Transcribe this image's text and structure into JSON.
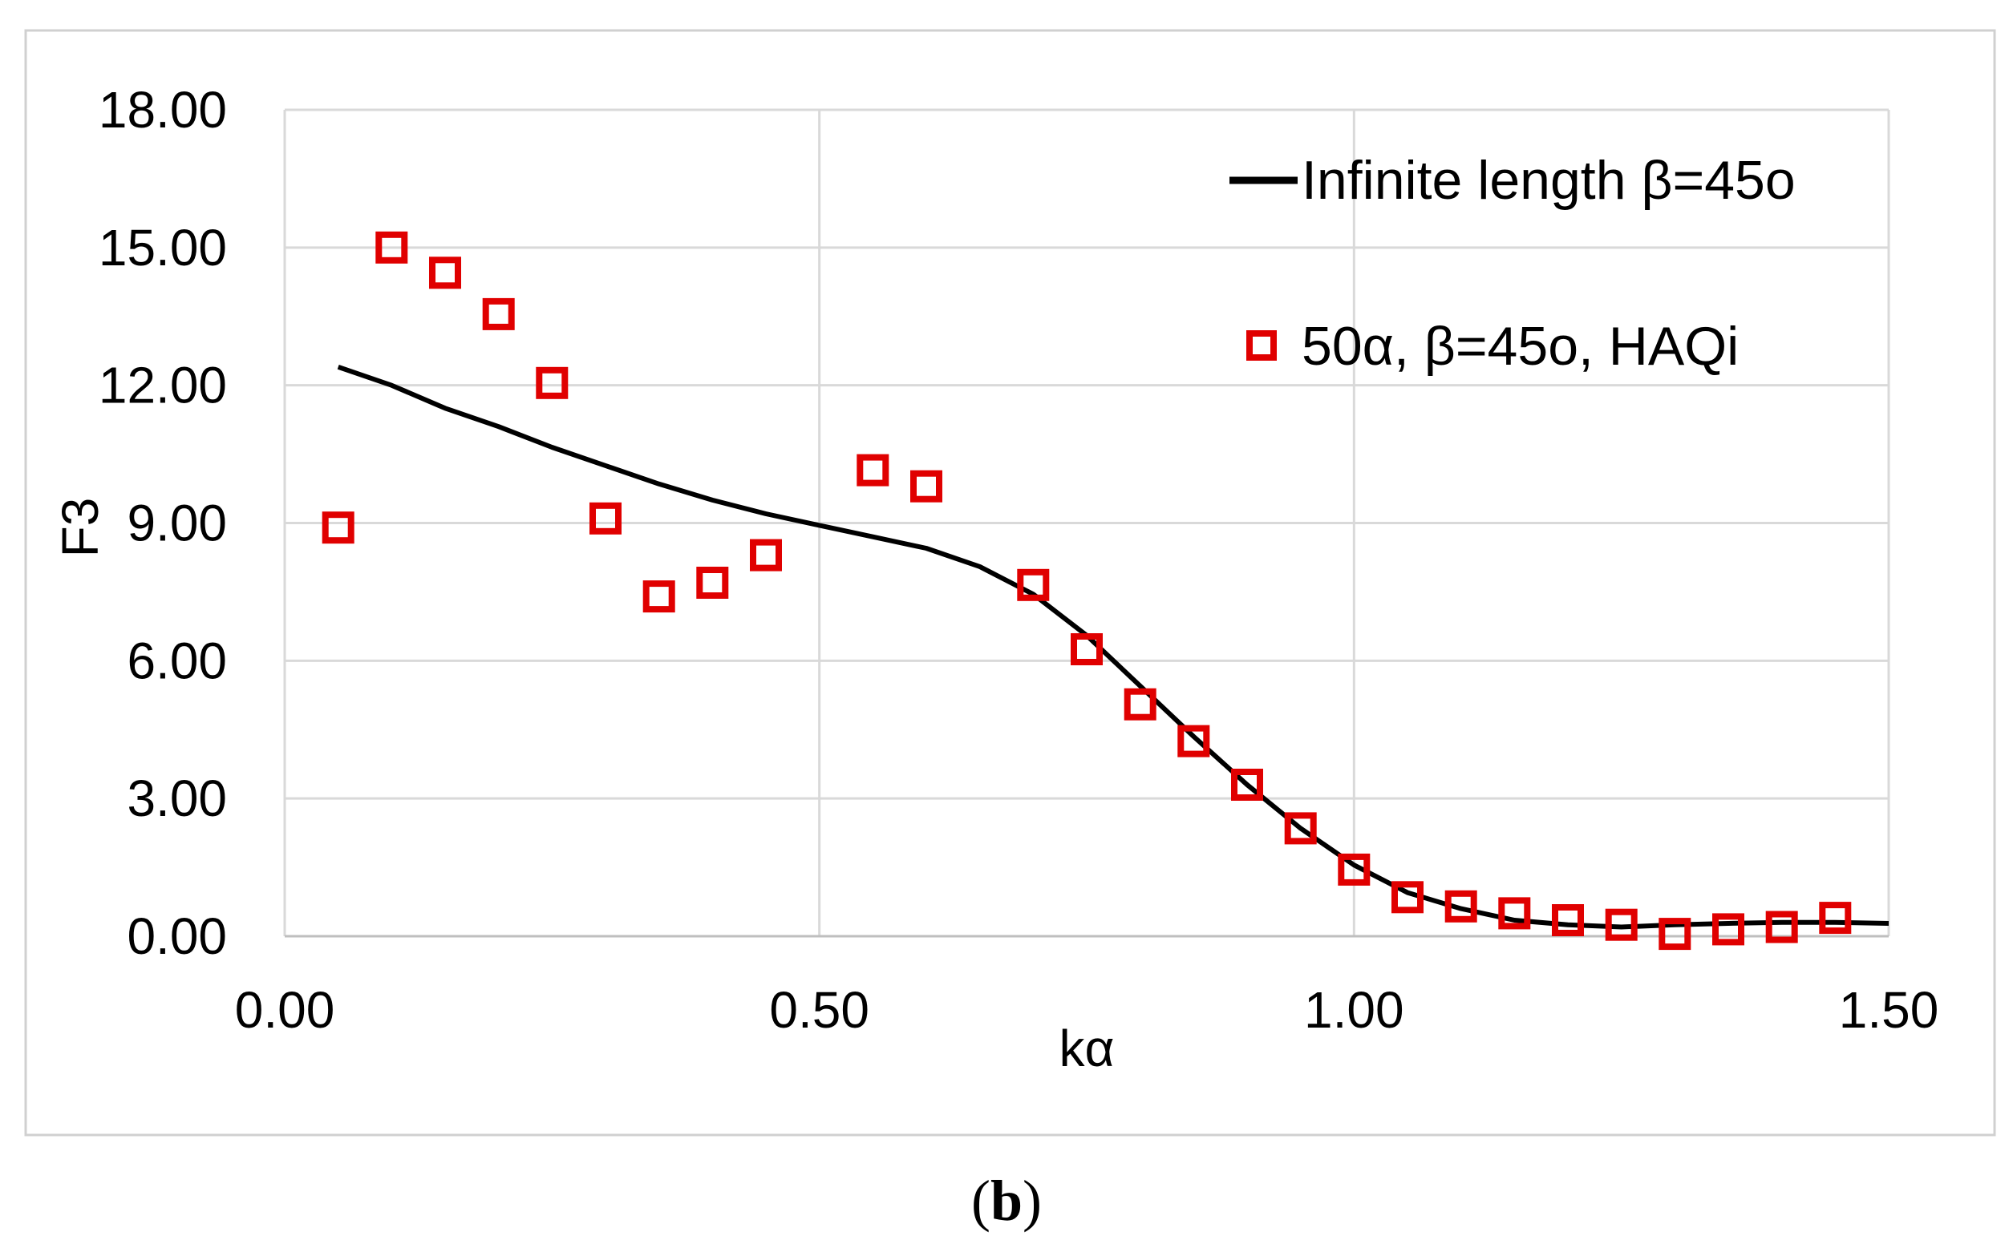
{
  "chart_data": {
    "type": "line",
    "xlabel": "kα",
    "ylabel": "F3",
    "xlim": [
      0,
      1.5
    ],
    "ylim": [
      0,
      18
    ],
    "x_ticks": [
      "0.00",
      "0.50",
      "1.00",
      "1.50"
    ],
    "y_ticks": [
      "0.00",
      "3.00",
      "6.00",
      "9.00",
      "12.00",
      "15.00",
      "18.00"
    ],
    "x_tick_values": [
      0,
      0.5,
      1.0,
      1.5
    ],
    "y_tick_values": [
      0,
      3,
      6,
      9,
      12,
      15,
      18
    ],
    "x_grid_values": [
      0.5,
      1.0,
      1.5
    ],
    "grid": true,
    "legend_position": "top-right",
    "series": [
      {
        "name": "Infinite length β=45o",
        "style": "line",
        "color": "#000000",
        "x": [
          0.05,
          0.1,
          0.15,
          0.2,
          0.25,
          0.3,
          0.35,
          0.4,
          0.45,
          0.5,
          0.55,
          0.6,
          0.65,
          0.7,
          0.75,
          0.8,
          0.85,
          0.9,
          0.95,
          1.0,
          1.05,
          1.1,
          1.15,
          1.2,
          1.25,
          1.3,
          1.35,
          1.4,
          1.45,
          1.5
        ],
        "y": [
          12.4,
          12.0,
          11.5,
          11.1,
          10.65,
          10.25,
          9.85,
          9.5,
          9.2,
          8.95,
          8.7,
          8.45,
          8.05,
          7.45,
          6.55,
          5.45,
          4.35,
          3.3,
          2.35,
          1.55,
          0.95,
          0.6,
          0.35,
          0.25,
          0.2,
          0.25,
          0.28,
          0.3,
          0.3,
          0.28
        ]
      },
      {
        "name": "50α, β=45o, HAQi",
        "style": "markers",
        "marker": "square",
        "color": "#e00000",
        "x": [
          0.05,
          0.1,
          0.15,
          0.2,
          0.25,
          0.3,
          0.35,
          0.4,
          0.45,
          0.55,
          0.6,
          0.7,
          0.75,
          0.8,
          0.85,
          0.9,
          0.95,
          1.0,
          1.05,
          1.1,
          1.15,
          1.2,
          1.25,
          1.3,
          1.35,
          1.4,
          1.45
        ],
        "y": [
          8.9,
          15.0,
          14.45,
          13.55,
          12.05,
          9.1,
          7.4,
          7.7,
          8.3,
          10.15,
          9.8,
          7.65,
          6.25,
          5.05,
          4.25,
          3.3,
          2.35,
          1.45,
          0.85,
          0.65,
          0.5,
          0.35,
          0.25,
          0.05,
          0.15,
          0.2,
          0.4
        ]
      }
    ]
  },
  "caption": {
    "open": "(",
    "letter": "b",
    "close": ")"
  }
}
